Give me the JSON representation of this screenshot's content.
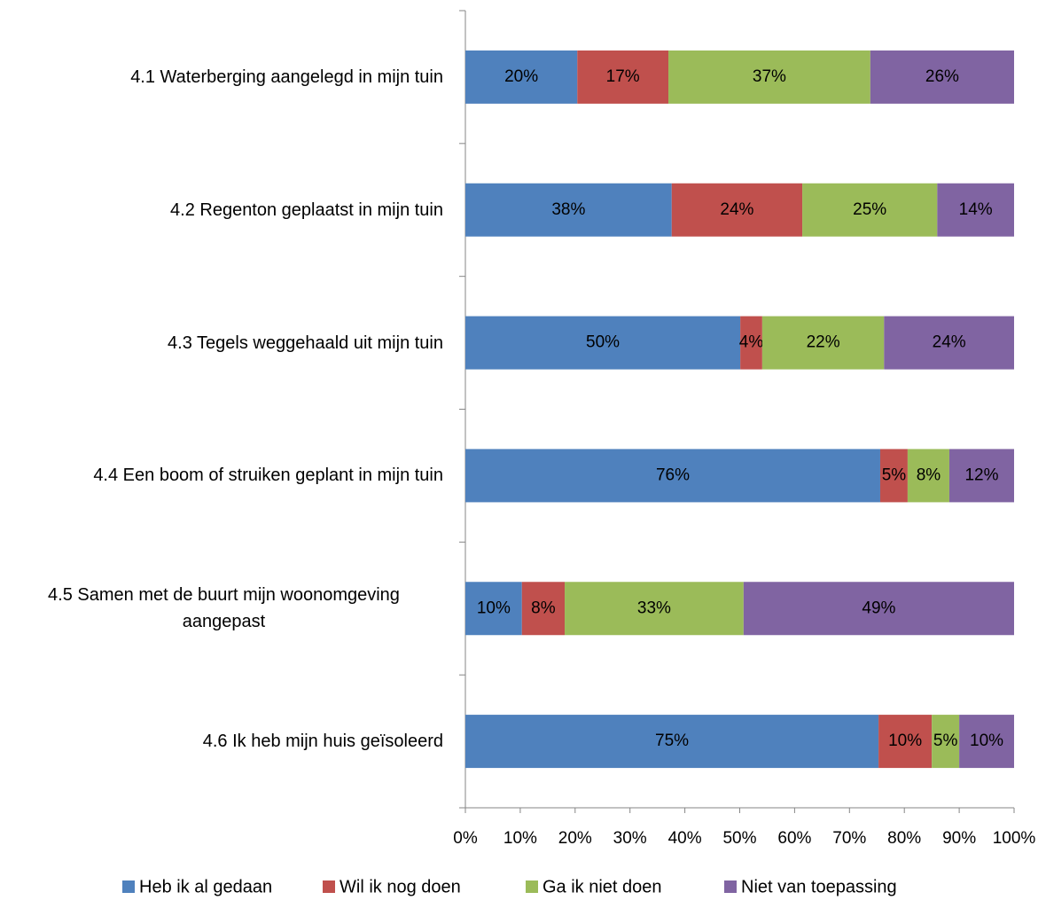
{
  "chart_data": {
    "type": "stacked-bar-horizontal",
    "categories": [
      "4.1 Waterberging aangelegd in mijn tuin",
      "4.2 Regenton geplaatst in mijn tuin",
      "4.3 Tegels weggehaald uit mijn tuin",
      "4.4 Een boom of struiken geplant in mijn tuin",
      "4.5 Samen met de buurt mijn woonomgeving aangepast",
      "4.6 Ik heb mijn huis geïsoleerd"
    ],
    "series": [
      {
        "name": "Heb ik al gedaan",
        "color": "#4f81bd",
        "values": [
          20.4,
          37.6,
          50.1,
          75.6,
          10.3,
          75.3
        ],
        "value_labels": [
          "20%",
          "38%",
          "50%",
          "76%",
          "10%",
          "75%"
        ]
      },
      {
        "name": "Wil ik nog doen",
        "color": "#c0504d",
        "values": [
          16.6,
          23.8,
          4.0,
          5.0,
          7.8,
          9.7
        ],
        "value_labels": [
          "17%",
          "24%",
          "4%",
          "5%",
          "8%",
          "10%"
        ]
      },
      {
        "name": "Ga ik niet doen",
        "color": "#9bbb59",
        "values": [
          36.8,
          24.6,
          22.2,
          7.6,
          32.6,
          5.0
        ],
        "value_labels": [
          "37%",
          "25%",
          "22%",
          "8%",
          "33%",
          "5%"
        ]
      },
      {
        "name": "Niet van toepassing",
        "color": "#8064a2",
        "values": [
          26.2,
          14.0,
          23.7,
          11.8,
          49.3,
          10.0
        ],
        "value_labels": [
          "26%",
          "14%",
          "24%",
          "12%",
          "49%",
          "10%"
        ]
      }
    ],
    "xlim": [
      0,
      100
    ],
    "xticks": [
      {
        "value": 0,
        "label": "0%"
      },
      {
        "value": 10,
        "label": "10%"
      },
      {
        "value": 20,
        "label": "20%"
      },
      {
        "value": 30,
        "label": "30%"
      },
      {
        "value": 40,
        "label": "40%"
      },
      {
        "value": 50,
        "label": "50%"
      },
      {
        "value": 60,
        "label": "60%"
      },
      {
        "value": 70,
        "label": "70%"
      },
      {
        "value": 80,
        "label": "80%"
      },
      {
        "value": 90,
        "label": "90%"
      },
      {
        "value": 100,
        "label": "100%"
      }
    ],
    "legend": "bottom"
  }
}
